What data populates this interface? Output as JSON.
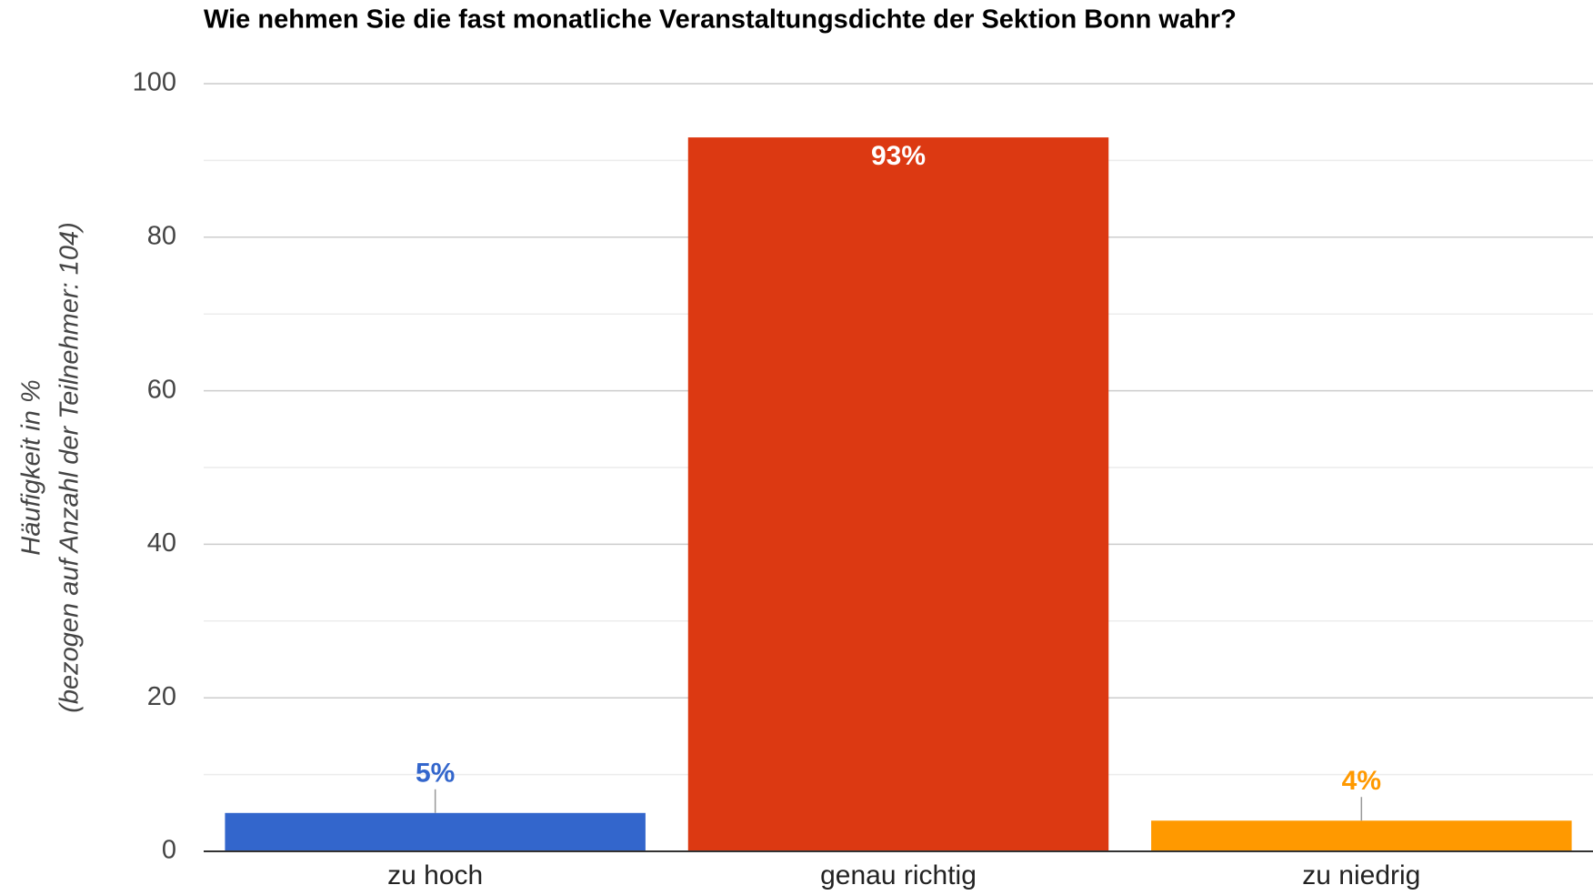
{
  "chart_data": {
    "type": "bar",
    "title": "Wie nehmen Sie die fast monatliche Veranstaltungsdichte der Sektion Bonn wahr?",
    "y_label": [
      "Häufigkeit in %",
      "(bezogen auf Anzahl der Teilnehmer: 104)"
    ],
    "categories": [
      "zu hoch",
      "genau richtig",
      "zu niedrig"
    ],
    "values": [
      5,
      93,
      4
    ],
    "value_labels": [
      "5%",
      "93%",
      "4%"
    ],
    "colors": [
      "#3366cc",
      "#dc3912",
      "#ff9900"
    ],
    "ylim": [
      0,
      100
    ],
    "yticks": [
      0,
      20,
      40,
      60,
      80,
      100
    ],
    "minor_yticks": [
      10,
      30,
      50,
      70,
      90
    ],
    "grid": true
  }
}
